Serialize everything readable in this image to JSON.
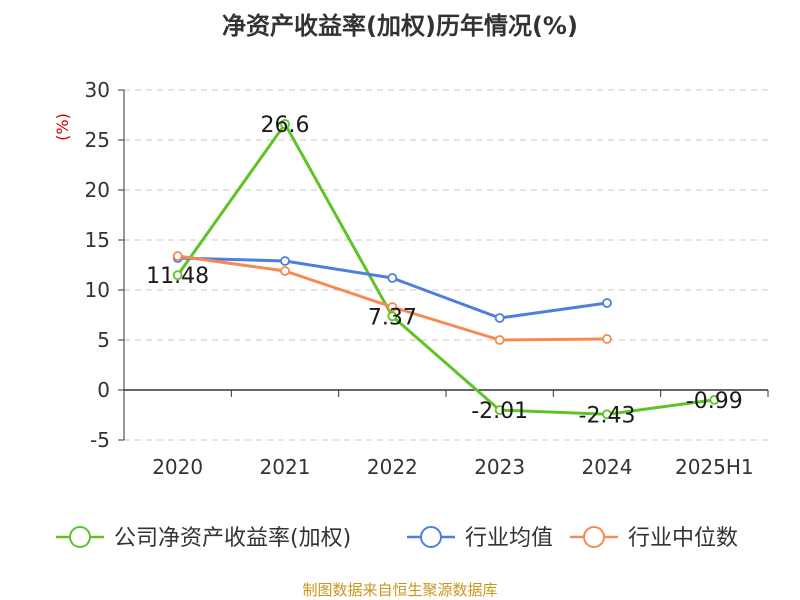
{
  "chart_data": {
    "type": "line",
    "title": "净资产收益率(加权)历年情况(%)",
    "ylabel": "(%)",
    "xlabel": "",
    "categories": [
      "2020",
      "2021",
      "2022",
      "2023",
      "2024",
      "2025H1"
    ],
    "ylim": [
      -5,
      30
    ],
    "yticks": [
      "30",
      "25",
      "20",
      "15",
      "10",
      "5",
      "0",
      "-5"
    ],
    "grid": true,
    "legend_position": "bottom",
    "series": [
      {
        "name": "公司净资产收益率(加权)",
        "color": "#5ec326",
        "values": [
          11.48,
          26.6,
          7.37,
          -2.01,
          -2.43,
          -0.99
        ],
        "labels": [
          "11.48",
          "26.6",
          "7.37",
          "-2.01",
          "-2.43",
          "-0.99"
        ]
      },
      {
        "name": "行业均值",
        "color": "#4e7fdc",
        "values": [
          13.2,
          12.9,
          11.2,
          7.2,
          8.7,
          null
        ]
      },
      {
        "name": "行业中位数",
        "color": "#f48b54",
        "values": [
          13.4,
          11.9,
          8.3,
          5.0,
          5.1,
          null
        ]
      }
    ]
  },
  "footer": {
    "source": "制图数据来自恒生聚源数据库"
  }
}
